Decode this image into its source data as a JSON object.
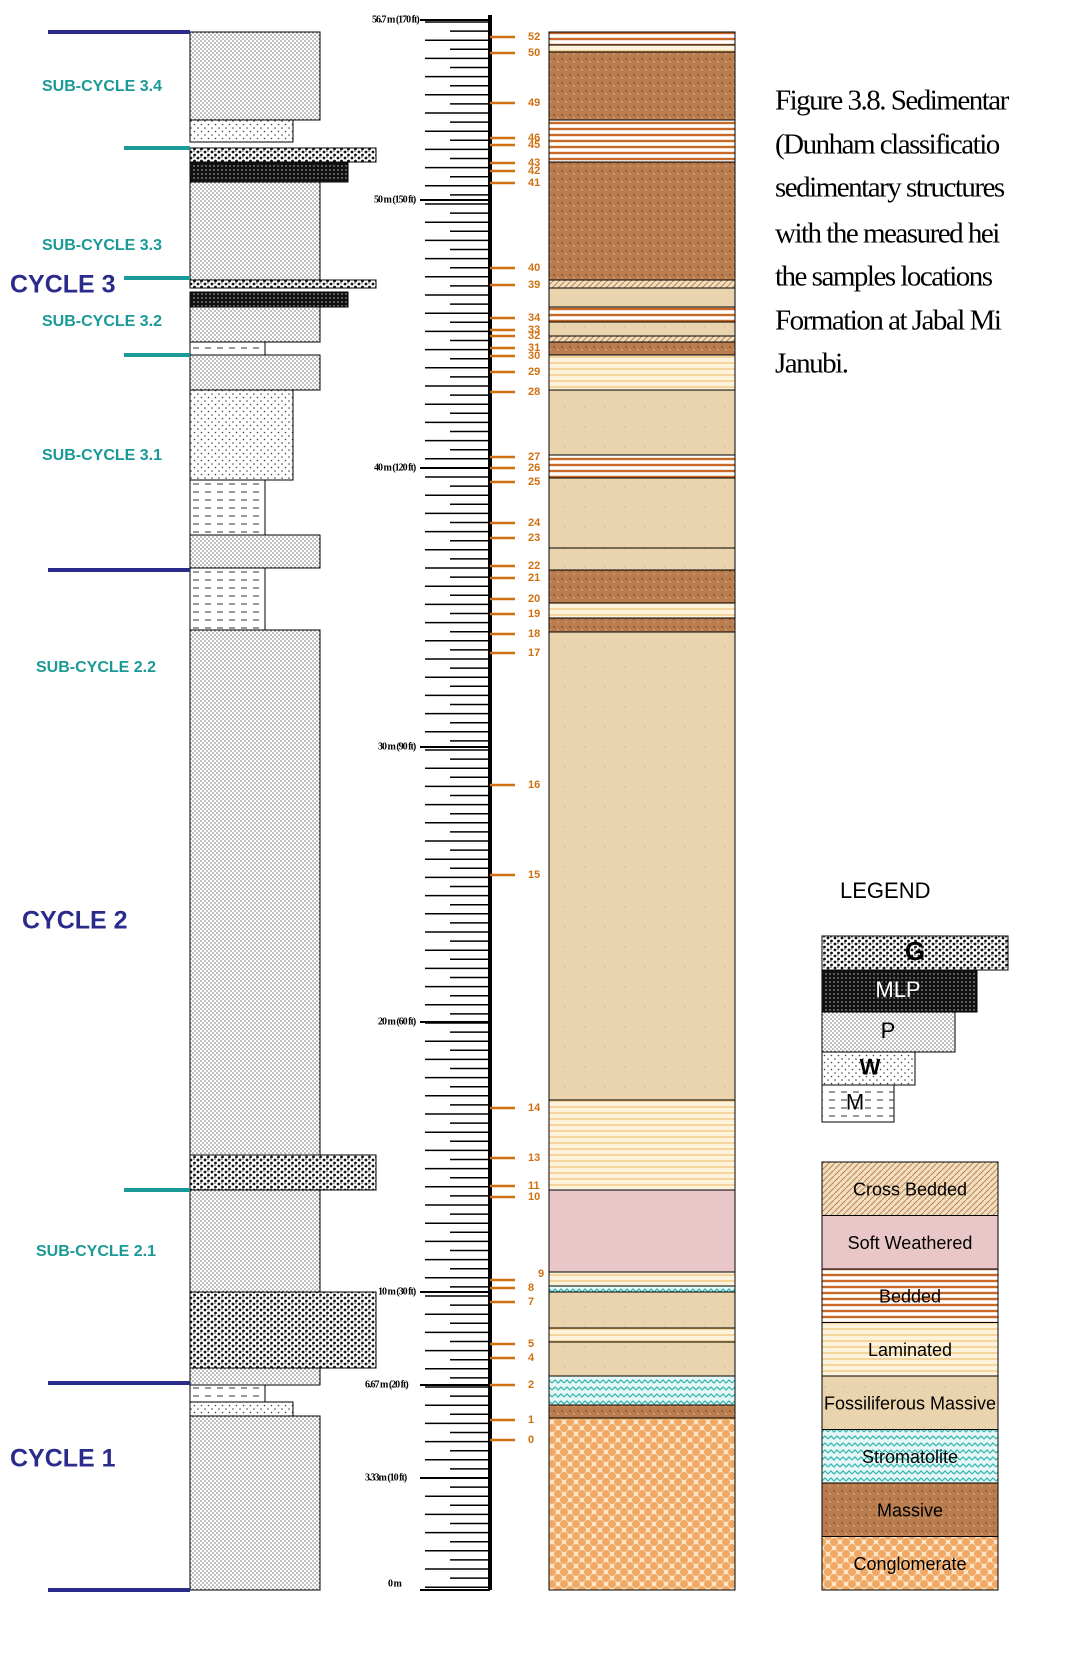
{
  "cycles": [
    "CYCLE 3",
    "CYCLE 2",
    "CYCLE 1"
  ],
  "sub_cycles": [
    "SUB-CYCLE 3.4",
    "SUB-CYCLE 3.3",
    "SUB-CYCLE 3.2",
    "SUB-CYCLE 3.1",
    "SUB-CYCLE 2.2",
    "SUB-CYCLE 2.1"
  ],
  "scale_labels": [
    "56.7 m (170 ft)",
    "50 m (150 ft)",
    "40 m (120 ft)",
    "30 m (90 ft)",
    "20 m (60 ft)",
    "10 m (30 ft)",
    "6.67 m (20 ft)",
    "3.33m (10 ft)",
    "0 m"
  ],
  "samples": [
    52,
    50,
    49,
    46,
    45,
    43,
    42,
    41,
    40,
    39,
    34,
    33,
    32,
    31,
    30,
    29,
    28,
    27,
    26,
    25,
    24,
    23,
    22,
    21,
    20,
    19,
    18,
    17,
    16,
    15,
    14,
    13,
    11,
    10,
    9,
    8,
    7,
    5,
    4,
    2,
    1,
    0
  ],
  "caption": {
    "lines": [
      "Figure 3.8. Sedimentar",
      "(Dunham classificatio",
      "sedimentary structures",
      "with the measured hei",
      "the samples locations",
      "Formation at Jabal Mi",
      "Janubi."
    ]
  },
  "legend": {
    "title": "LEGEND",
    "lithology": [
      "G",
      "MLP",
      "P",
      "W",
      "M"
    ],
    "structures": [
      "Cross Bedded",
      "Soft Weathered",
      "Bedded",
      "Laminated",
      "Fossiliferous Massive",
      "Stromatolite",
      "Massive",
      "Conglomerate"
    ]
  }
}
